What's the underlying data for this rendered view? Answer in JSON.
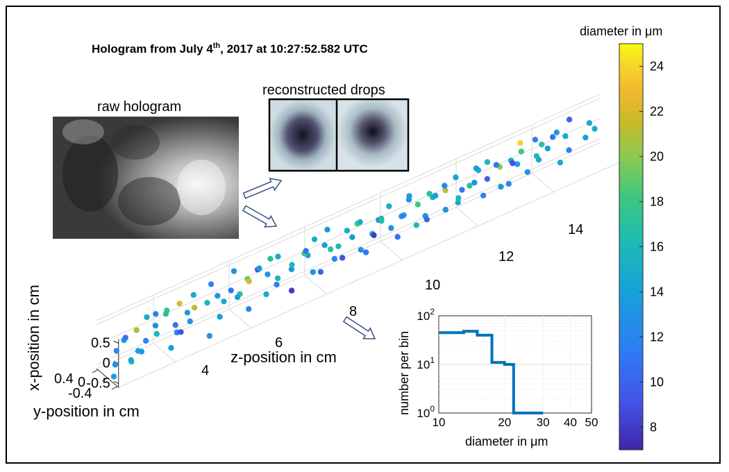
{
  "title": {
    "prefix": "Hologram from July 4",
    "superscript": "th",
    "suffix": ", 2017 at 10:27:52.582 UTC"
  },
  "raw_hologram_label": "raw hologram",
  "reconstructed_label": "reconstructed drops",
  "colors": {
    "frame": "#000000",
    "hist_line": "#0072bd",
    "arrow_fill": "#ffffff",
    "arrow_stroke": "#2f4f80"
  },
  "chart_data": [
    {
      "type": "scatter",
      "xlabel": "x-position in cm",
      "ylabel": "y-position in cm",
      "zlabel": "z-position in cm",
      "x_ticks": [
        "0.5",
        "0",
        "-0.5"
      ],
      "y_ticks": [
        "0.4",
        "0",
        "-0.4"
      ],
      "z_ticks": [
        "4",
        "6",
        "8",
        "10",
        "12",
        "14"
      ],
      "colorbar": {
        "label": "diameter in μm",
        "range": [
          7,
          25
        ],
        "ticks": [
          "8",
          "10",
          "12",
          "14",
          "16",
          "18",
          "20",
          "22",
          "24"
        ],
        "colormap": "parula"
      },
      "points": [
        {
          "z": 2.6,
          "x": -0.55,
          "y": 0.1,
          "d": 14
        },
        {
          "z": 2.7,
          "x": -0.35,
          "y": 0.0,
          "d": 13
        },
        {
          "z": 2.8,
          "x": -0.1,
          "y": -0.1,
          "d": 12
        },
        {
          "z": 2.9,
          "x": 0.2,
          "y": 0.05,
          "d": 14
        },
        {
          "z": 3.0,
          "x": -0.3,
          "y": 0.2,
          "d": 17
        },
        {
          "z": 3.1,
          "x": 0.05,
          "y": -0.2,
          "d": 11
        },
        {
          "z": 3.15,
          "x": -0.45,
          "y": -0.05,
          "d": 15
        },
        {
          "z": 3.2,
          "x": 0.35,
          "y": 0.1,
          "d": 21
        },
        {
          "z": 3.3,
          "x": -0.2,
          "y": 0.15,
          "d": 13
        },
        {
          "z": 3.35,
          "x": 0.1,
          "y": 0.25,
          "d": 12
        },
        {
          "z": 3.5,
          "x": -0.5,
          "y": -0.3,
          "d": 14
        },
        {
          "z": 3.6,
          "x": 0.4,
          "y": -0.1,
          "d": 15
        },
        {
          "z": 3.7,
          "x": 0.25,
          "y": 0.1,
          "d": 13
        },
        {
          "z": 3.8,
          "x": -0.05,
          "y": 0.0,
          "d": 16
        },
        {
          "z": 3.9,
          "x": 0.3,
          "y": -0.2,
          "d": 12
        },
        {
          "z": 4.0,
          "x": 0.5,
          "y": 0.1,
          "d": 18
        },
        {
          "z": 4.05,
          "x": -0.4,
          "y": 0.2,
          "d": 14
        },
        {
          "z": 4.1,
          "x": 0.2,
          "y": 0.3,
          "d": 11
        },
        {
          "z": 4.2,
          "x": 0.15,
          "y": -0.25,
          "d": 17
        },
        {
          "z": 4.3,
          "x": -0.2,
          "y": 0.05,
          "d": 12
        },
        {
          "z": 4.4,
          "x": 0.45,
          "y": 0.0,
          "d": 22
        },
        {
          "z": 4.5,
          "x": -0.35,
          "y": -0.1,
          "d": 9
        },
        {
          "z": 4.55,
          "x": 0.05,
          "y": 0.2,
          "d": 13
        },
        {
          "z": 4.7,
          "x": 0.3,
          "y": 0.15,
          "d": 21
        },
        {
          "z": 4.8,
          "x": -0.1,
          "y": -0.3,
          "d": 14
        },
        {
          "z": 4.9,
          "x": 0.35,
          "y": -0.2,
          "d": 15
        },
        {
          "z": 5.0,
          "x": -0.45,
          "y": 0.3,
          "d": 13
        },
        {
          "z": 5.1,
          "x": 0.2,
          "y": 0.05,
          "d": 16
        },
        {
          "z": 5.3,
          "x": 0.5,
          "y": -0.1,
          "d": 12
        },
        {
          "z": 5.4,
          "x": -0.25,
          "y": 0.1,
          "d": 14
        },
        {
          "z": 5.5,
          "x": 0.1,
          "y": -0.15,
          "d": 13
        },
        {
          "z": 5.6,
          "x": 0.4,
          "y": 0.25,
          "d": 11
        },
        {
          "z": 5.7,
          "x": -0.15,
          "y": -0.2,
          "d": 15
        },
        {
          "z": 5.8,
          "x": 0.25,
          "y": 0.3,
          "d": 17
        },
        {
          "z": 5.9,
          "x": 0.0,
          "y": 0.05,
          "d": 14
        },
        {
          "z": 6.0,
          "x": 0.45,
          "y": -0.25,
          "d": 13
        },
        {
          "z": 6.1,
          "x": -0.3,
          "y": 0.2,
          "d": 12
        },
        {
          "z": 6.2,
          "x": 0.3,
          "y": 0.0,
          "d": 19
        },
        {
          "z": 6.3,
          "x": 0.15,
          "y": -0.1,
          "d": 22
        },
        {
          "z": 6.4,
          "x": 0.5,
          "y": 0.1,
          "d": 9
        },
        {
          "z": 6.5,
          "x": -0.05,
          "y": 0.3,
          "d": 15
        },
        {
          "z": 6.6,
          "x": 0.35,
          "y": 0.2,
          "d": 13
        },
        {
          "z": 6.7,
          "x": 0.2,
          "y": -0.3,
          "d": 14
        },
        {
          "z": 6.8,
          "x": 0.55,
          "y": 0.0,
          "d": 17
        },
        {
          "z": 6.9,
          "x": 0.1,
          "y": 0.15,
          "d": 16
        },
        {
          "z": 7.0,
          "x": -0.2,
          "y": -0.05,
          "d": 12
        },
        {
          "z": 7.1,
          "x": 0.4,
          "y": -0.15,
          "d": 15
        },
        {
          "z": 7.2,
          "x": 0.25,
          "y": 0.25,
          "d": 13
        },
        {
          "z": 7.3,
          "x": -0.4,
          "y": 0.1,
          "d": 8
        },
        {
          "z": 7.5,
          "x": 0.0,
          "y": -0.2,
          "d": 16
        },
        {
          "z": 7.6,
          "x": 0.45,
          "y": 0.3,
          "d": 14
        },
        {
          "z": 7.7,
          "x": 0.3,
          "y": 0.0,
          "d": 18
        },
        {
          "z": 7.8,
          "x": -0.1,
          "y": 0.2,
          "d": 13
        },
        {
          "z": 7.9,
          "x": 0.15,
          "y": -0.25,
          "d": 11
        },
        {
          "z": 8.0,
          "x": 0.5,
          "y": -0.05,
          "d": 15
        },
        {
          "z": 8.1,
          "x": -0.3,
          "y": 0.05,
          "d": 10
        },
        {
          "z": 8.2,
          "x": 0.35,
          "y": 0.3,
          "d": 17
        },
        {
          "z": 8.3,
          "x": 0.2,
          "y": -0.1,
          "d": 14
        },
        {
          "z": 8.4,
          "x": -0.05,
          "y": 0.15,
          "d": 12
        },
        {
          "z": 8.5,
          "x": 0.4,
          "y": -0.3,
          "d": 13
        },
        {
          "z": 8.6,
          "x": 0.1,
          "y": 0.0,
          "d": 16
        },
        {
          "z": 8.7,
          "x": 0.55,
          "y": 0.2,
          "d": 15
        },
        {
          "z": 8.8,
          "x": -0.35,
          "y": -0.15,
          "d": 9
        },
        {
          "z": 8.9,
          "x": 0.25,
          "y": 0.1,
          "d": 14
        },
        {
          "z": 9.0,
          "x": 0.0,
          "y": 0.3,
          "d": 13
        },
        {
          "z": 9.1,
          "x": 0.45,
          "y": 0.0,
          "d": 18
        },
        {
          "z": 9.2,
          "x": -0.2,
          "y": 0.2,
          "d": 11
        },
        {
          "z": 9.3,
          "x": 0.3,
          "y": -0.2,
          "d": 15
        },
        {
          "z": 9.4,
          "x": 0.15,
          "y": 0.15,
          "d": 14
        },
        {
          "z": 9.5,
          "x": 0.5,
          "y": 0.25,
          "d": 12
        },
        {
          "z": 9.6,
          "x": -0.1,
          "y": -0.1,
          "d": 8
        },
        {
          "z": 9.7,
          "x": 0.35,
          "y": 0.05,
          "d": 16
        },
        {
          "z": 9.8,
          "x": 0.2,
          "y": 0.3,
          "d": 13
        },
        {
          "z": 9.9,
          "x": 0.05,
          "y": -0.25,
          "d": 17
        },
        {
          "z": 10.0,
          "x": 0.45,
          "y": -0.1,
          "d": 15
        },
        {
          "z": 10.1,
          "x": -0.25,
          "y": 0.1,
          "d": 11
        },
        {
          "z": 10.2,
          "x": 0.3,
          "y": 0.2,
          "d": 14
        },
        {
          "z": 10.3,
          "x": 0.1,
          "y": -0.05,
          "d": 12
        },
        {
          "z": 10.4,
          "x": 0.55,
          "y": 0.1,
          "d": 13
        },
        {
          "z": 10.5,
          "x": -0.05,
          "y": 0.25,
          "d": 16
        },
        {
          "z": 10.6,
          "x": 0.4,
          "y": -0.2,
          "d": 14
        },
        {
          "z": 10.7,
          "x": 0.25,
          "y": 0.0,
          "d": 18
        },
        {
          "z": 10.8,
          "x": 0.0,
          "y": 0.15,
          "d": 13
        },
        {
          "z": 10.9,
          "x": 0.5,
          "y": 0.3,
          "d": 15
        },
        {
          "z": 11.0,
          "x": -0.3,
          "y": -0.1,
          "d": 10
        },
        {
          "z": 11.1,
          "x": 0.35,
          "y": 0.1,
          "d": 14
        },
        {
          "z": 11.2,
          "x": 0.15,
          "y": -0.3,
          "d": 17
        },
        {
          "z": 11.3,
          "x": 0.45,
          "y": 0.2,
          "d": 21
        },
        {
          "z": 11.4,
          "x": -0.15,
          "y": 0.05,
          "d": 13
        },
        {
          "z": 11.5,
          "x": 0.3,
          "y": -0.15,
          "d": 12
        },
        {
          "z": 11.6,
          "x": 0.05,
          "y": 0.25,
          "d": 15
        },
        {
          "z": 11.7,
          "x": 0.5,
          "y": 0.0,
          "d": 14
        },
        {
          "z": 11.8,
          "x": 0.2,
          "y": 0.1,
          "d": 11
        },
        {
          "z": 11.9,
          "x": -0.2,
          "y": -0.2,
          "d": 16
        },
        {
          "z": 12.0,
          "x": 0.4,
          "y": 0.3,
          "d": 13
        },
        {
          "z": 12.1,
          "x": 0.1,
          "y": -0.05,
          "d": 17
        },
        {
          "z": 12.2,
          "x": 0.55,
          "y": 0.15,
          "d": 15
        },
        {
          "z": 12.3,
          "x": -0.1,
          "y": 0.2,
          "d": 12
        },
        {
          "z": 12.4,
          "x": 0.3,
          "y": -0.25,
          "d": 14
        },
        {
          "z": 12.5,
          "x": 0.15,
          "y": 0.05,
          "d": 10
        },
        {
          "z": 12.6,
          "x": 0.45,
          "y": -0.1,
          "d": 16
        },
        {
          "z": 12.7,
          "x": 0.0,
          "y": 0.3,
          "d": 13
        },
        {
          "z": 12.8,
          "x": 0.35,
          "y": 0.1,
          "d": 20
        },
        {
          "z": 12.9,
          "x": 0.2,
          "y": -0.2,
          "d": 11
        },
        {
          "z": 13.0,
          "x": 0.5,
          "y": 0.25,
          "d": 15
        },
        {
          "z": 13.1,
          "x": -0.25,
          "y": 0.0,
          "d": 12
        },
        {
          "z": 13.2,
          "x": 0.3,
          "y": 0.2,
          "d": 14
        },
        {
          "z": 13.3,
          "x": 0.1,
          "y": -0.15,
          "d": 9
        },
        {
          "z": 13.4,
          "x": 0.45,
          "y": 0.05,
          "d": 18
        },
        {
          "z": 13.5,
          "x": -0.05,
          "y": 0.15,
          "d": 13
        },
        {
          "z": 13.6,
          "x": 0.4,
          "y": -0.3,
          "d": 24
        },
        {
          "z": 13.7,
          "x": 0.25,
          "y": 0.3,
          "d": 15
        },
        {
          "z": 13.8,
          "x": 0.55,
          "y": 0.0,
          "d": 12
        },
        {
          "z": 13.9,
          "x": 0.05,
          "y": -0.1,
          "d": 16
        },
        {
          "z": 14.0,
          "x": 0.35,
          "y": 0.2,
          "d": 14
        },
        {
          "z": 14.1,
          "x": 0.2,
          "y": -0.2,
          "d": 17
        },
        {
          "z": 14.2,
          "x": 0.5,
          "y": 0.1,
          "d": 11
        },
        {
          "z": 14.3,
          "x": -0.1,
          "y": 0.25,
          "d": 15
        },
        {
          "z": 14.4,
          "x": 0.45,
          "y": -0.05,
          "d": 13
        },
        {
          "z": 14.5,
          "x": 0.15,
          "y": 0.3,
          "d": 12
        },
        {
          "z": 14.6,
          "x": 0.3,
          "y": 0.0,
          "d": 15
        },
        {
          "z": 14.8,
          "x": 0.55,
          "y": -0.15,
          "d": 10
        },
        {
          "z": 15.0,
          "x": 0.2,
          "y": 0.2,
          "d": 14
        },
        {
          "z": 15.2,
          "x": 0.4,
          "y": 0.05,
          "d": 15
        },
        {
          "z": 15.5,
          "x": 0.0,
          "y": -0.2,
          "d": 15
        }
      ]
    },
    {
      "type": "line",
      "xlabel": "diameter in μm",
      "ylabel": "number per bin",
      "xscale": "log",
      "yscale": "log",
      "xlim": [
        10,
        50
      ],
      "ylim": [
        1,
        100
      ],
      "x_ticks": [
        "10",
        "20",
        "30",
        "40",
        "50"
      ],
      "y_ticks": [
        {
          "base": "10",
          "exp": "0"
        },
        {
          "base": "10",
          "exp": "1"
        },
        {
          "base": "10",
          "exp": "2"
        }
      ],
      "series": [
        {
          "steps": [
            [
              10,
              45
            ],
            [
              13,
              48
            ],
            [
              15,
              40
            ],
            [
              17.5,
              11
            ],
            [
              20,
              10
            ],
            [
              22,
              1
            ],
            [
              30,
              1
            ]
          ]
        }
      ]
    }
  ]
}
